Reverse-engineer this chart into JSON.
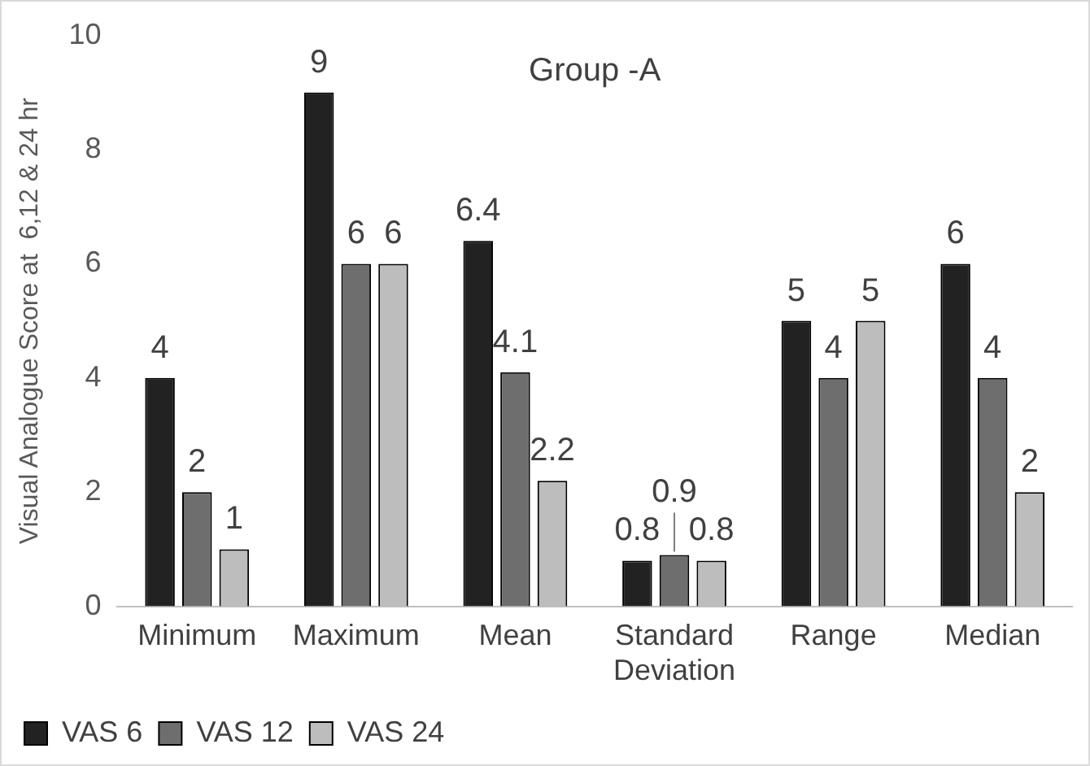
{
  "chart_data": {
    "type": "bar",
    "title": "Group -A",
    "ylabel": "Visual Analogue Score at  6,12 & 24 hr",
    "categories": [
      "Minimum",
      "Maximum",
      "Mean",
      "Standard Deviation",
      "Range",
      "Median"
    ],
    "series": [
      {
        "name": "VAS 6",
        "color": "#222222",
        "values": [
          4,
          9,
          6.4,
          0.8,
          5,
          6
        ]
      },
      {
        "name": "VAS 12",
        "color": "#6e6e6e",
        "values": [
          2,
          6,
          4.1,
          0.9,
          4,
          4
        ]
      },
      {
        "name": "VAS 24",
        "color": "#bdbdbd",
        "values": [
          1,
          6,
          2.2,
          0.8,
          5,
          2
        ]
      }
    ],
    "ylim": [
      0,
      10
    ],
    "yticks": [
      0,
      2,
      4,
      6,
      8,
      10
    ],
    "grid": false,
    "legend": "bottom left",
    "data_labels": true
  }
}
